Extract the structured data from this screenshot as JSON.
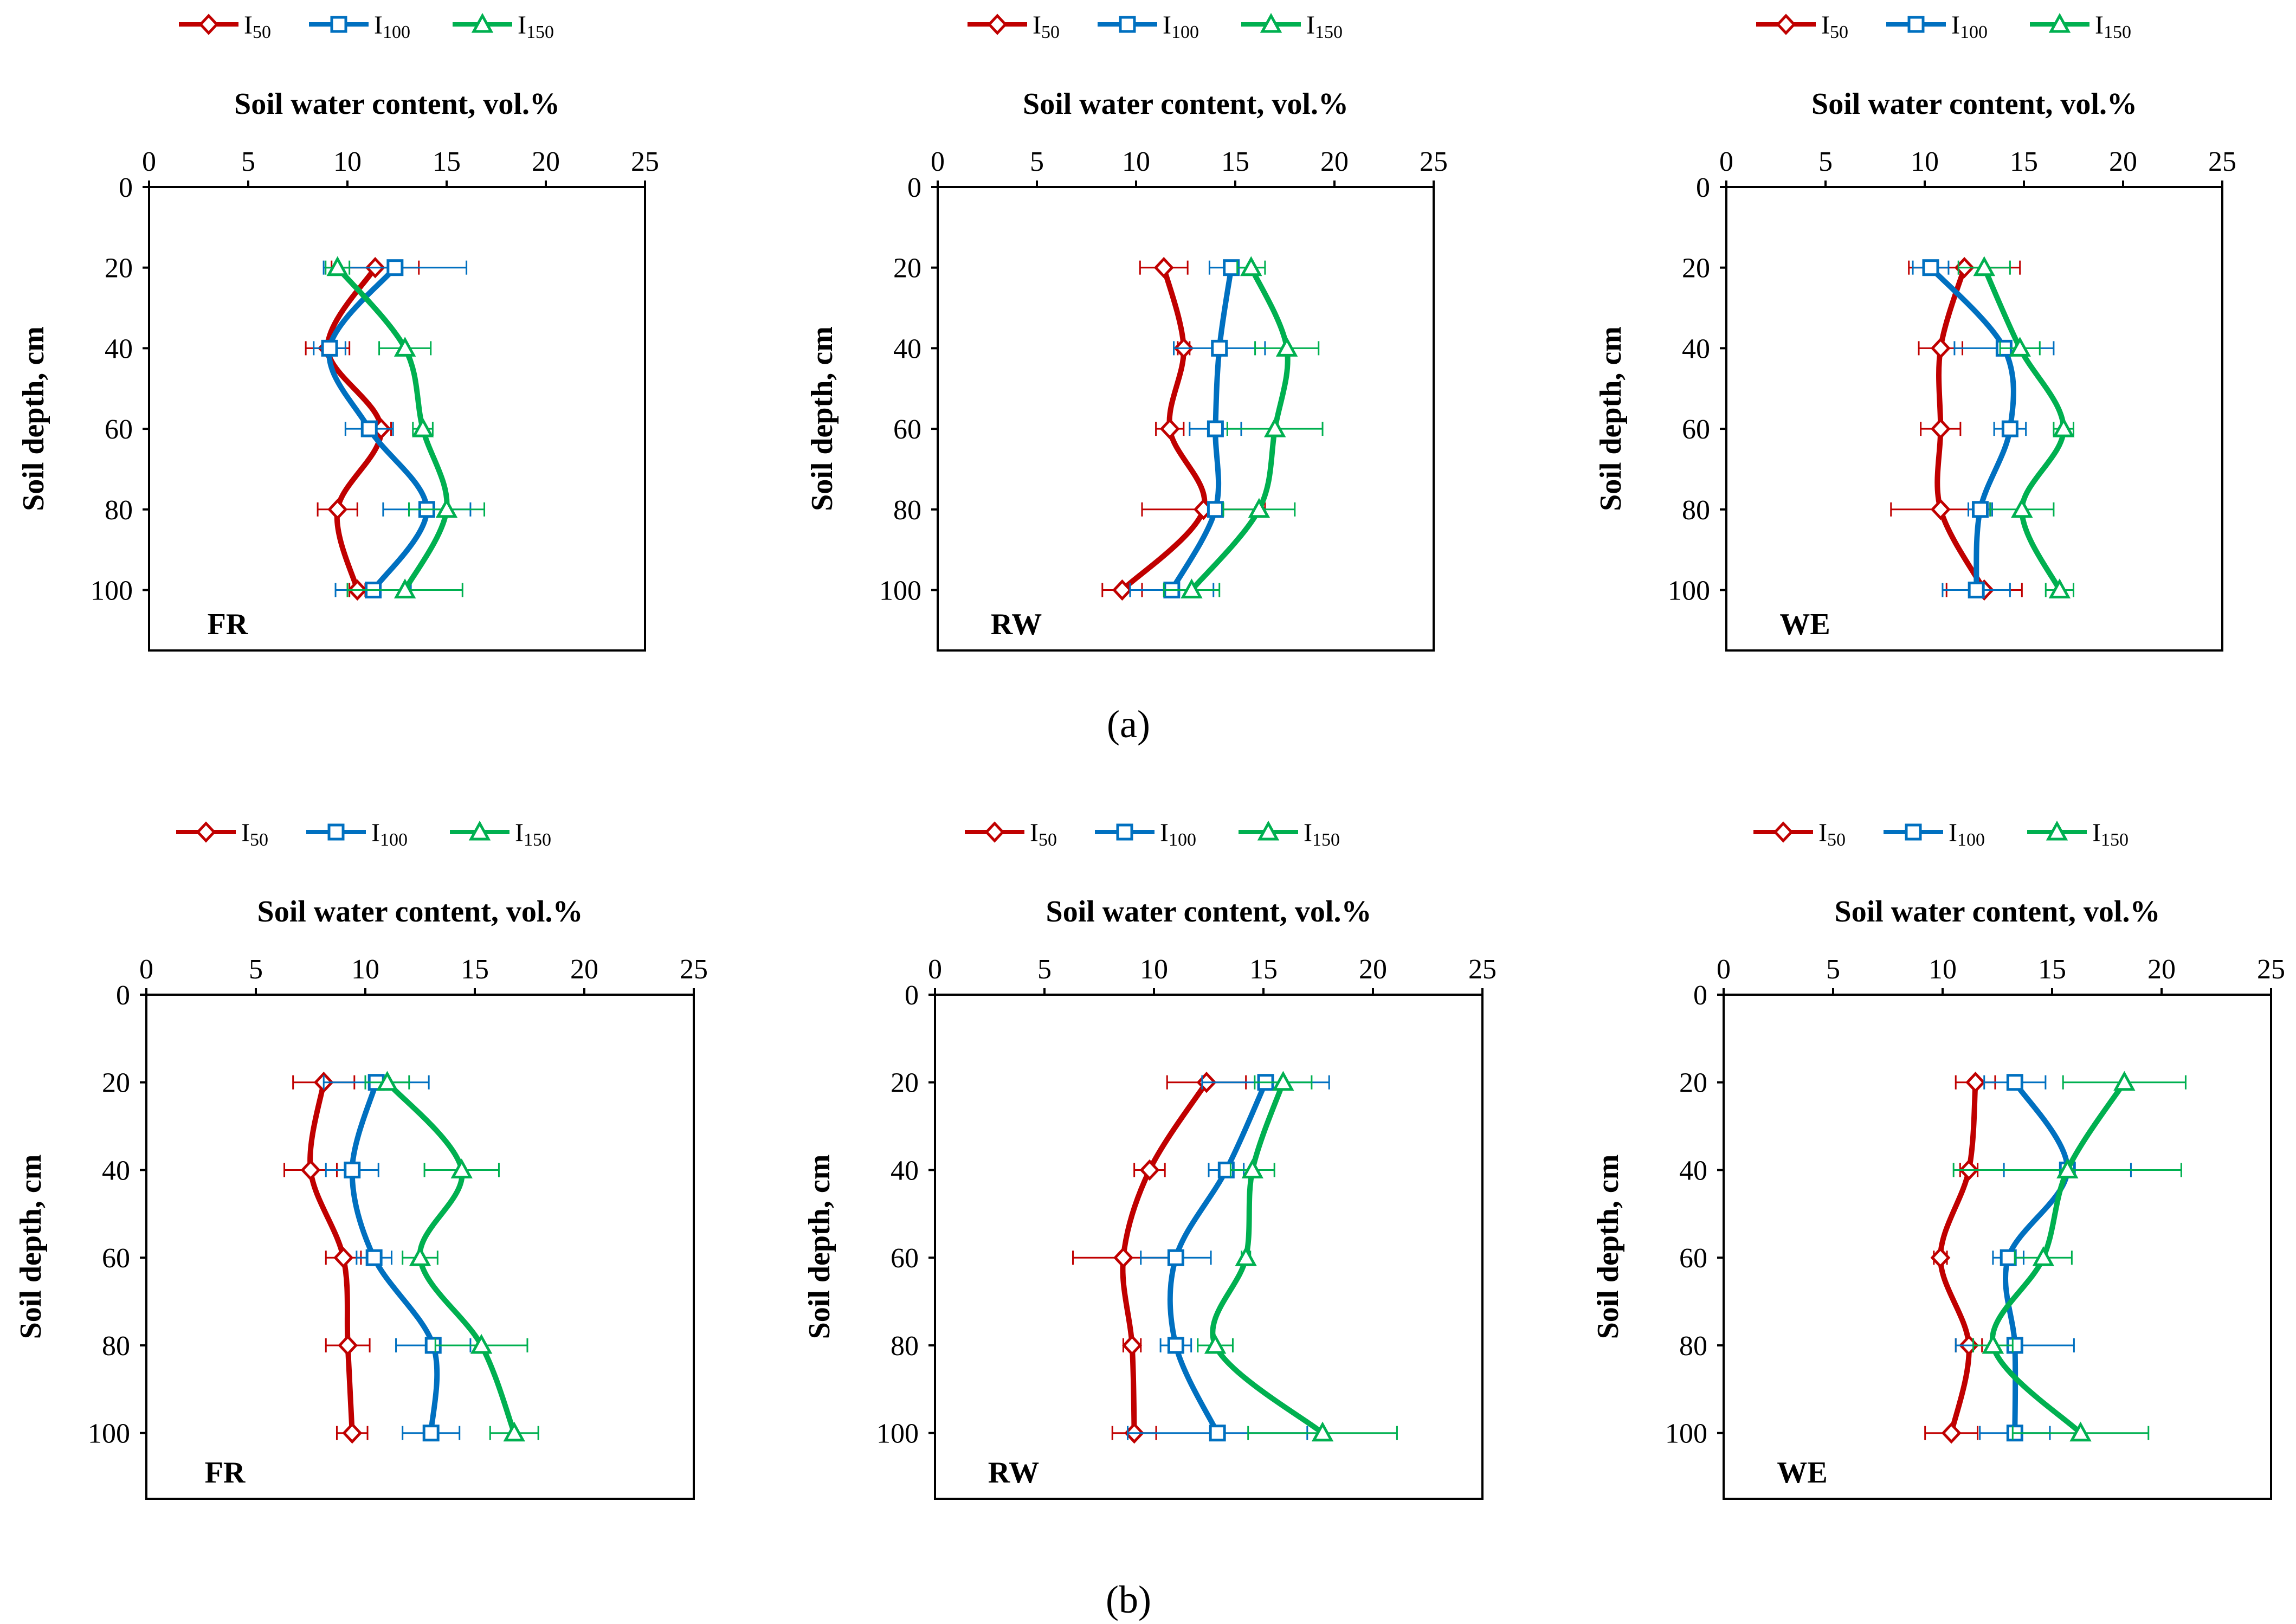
{
  "figure": {
    "group_labels": [
      "(a)",
      "(b)"
    ],
    "colors": {
      "I50": "#C00000",
      "I100": "#0070C0",
      "I150": "#00B050",
      "axis": "#000000"
    }
  },
  "chart_data": [
    {
      "type": "line",
      "panel": "FR",
      "group": "a",
      "xlabel": "Soil water content, vol.%",
      "ylabel": "Soil depth, cm",
      "xlim": [
        0,
        25
      ],
      "ylim": [
        0,
        115
      ],
      "xticks": [
        0,
        5,
        10,
        15,
        20,
        25
      ],
      "yticks": [
        0,
        20,
        40,
        60,
        80,
        100
      ],
      "depth": [
        20,
        40,
        60,
        80,
        100
      ],
      "series": [
        {
          "name": "I",
          "sub": "50",
          "key": "I50",
          "marker": "diamond",
          "values": [
            11.4,
            9.0,
            11.7,
            9.5,
            10.5
          ],
          "err": [
            2.2,
            1.1,
            0.5,
            1.0,
            0.4
          ]
        },
        {
          "name": "I",
          "sub": "100",
          "key": "I100",
          "marker": "square",
          "values": [
            12.4,
            9.1,
            11.1,
            14.0,
            11.3
          ],
          "err": [
            3.6,
            0.8,
            1.2,
            2.2,
            1.9
          ]
        },
        {
          "name": "I",
          "sub": "150",
          "key": "I150",
          "marker": "triangle",
          "values": [
            9.5,
            12.9,
            13.8,
            15.0,
            12.9
          ],
          "err": [
            0.6,
            1.3,
            0.5,
            1.9,
            2.9
          ]
        }
      ]
    },
    {
      "type": "line",
      "panel": "RW",
      "group": "a",
      "xlabel": "Soil water content, vol.%",
      "ylabel": "Soil depth, cm",
      "xlim": [
        0,
        25
      ],
      "ylim": [
        0,
        115
      ],
      "xticks": [
        0,
        5,
        10,
        15,
        20,
        25
      ],
      "yticks": [
        0,
        20,
        40,
        60,
        80,
        100
      ],
      "depth": [
        20,
        40,
        60,
        80,
        100
      ],
      "series": [
        {
          "name": "I",
          "sub": "50",
          "key": "I50",
          "marker": "diamond",
          "values": [
            11.4,
            12.4,
            11.7,
            13.4,
            9.3
          ],
          "err": [
            1.2,
            0.3,
            0.7,
            3.1,
            1.0
          ]
        },
        {
          "name": "I",
          "sub": "100",
          "key": "I100",
          "marker": "square",
          "values": [
            14.8,
            14.2,
            14.0,
            14.0,
            11.8
          ],
          "err": [
            1.1,
            2.3,
            1.3,
            0.3,
            2.1
          ]
        },
        {
          "name": "I",
          "sub": "150",
          "key": "I150",
          "marker": "triangle",
          "values": [
            15.8,
            17.6,
            17.0,
            16.2,
            12.8
          ],
          "err": [
            0.7,
            1.6,
            2.4,
            1.8,
            1.4
          ]
        }
      ]
    },
    {
      "type": "line",
      "panel": "WE",
      "group": "a",
      "xlabel": "Soil water content, vol.%",
      "ylabel": "Soil depth, cm",
      "xlim": [
        0,
        25
      ],
      "ylim": [
        0,
        115
      ],
      "xticks": [
        0,
        5,
        10,
        15,
        20,
        25
      ],
      "yticks": [
        0,
        20,
        40,
        60,
        80,
        100
      ],
      "depth": [
        20,
        40,
        60,
        80,
        100
      ],
      "series": [
        {
          "name": "I",
          "sub": "50",
          "key": "I50",
          "marker": "diamond",
          "values": [
            12.0,
            10.8,
            10.8,
            10.8,
            13.0
          ],
          "err": [
            2.8,
            1.1,
            1.0,
            2.5,
            1.9
          ]
        },
        {
          "name": "I",
          "sub": "100",
          "key": "I100",
          "marker": "square",
          "values": [
            10.3,
            14.0,
            14.3,
            12.8,
            12.6
          ],
          "err": [
            0.9,
            2.5,
            0.8,
            0.6,
            1.7
          ]
        },
        {
          "name": "I",
          "sub": "150",
          "key": "I150",
          "marker": "triangle",
          "values": [
            13.0,
            14.8,
            17.0,
            14.9,
            16.8
          ],
          "err": [
            1.3,
            1.0,
            0.5,
            1.6,
            0.7
          ]
        }
      ]
    },
    {
      "type": "line",
      "panel": "FR",
      "group": "b",
      "xlabel": "Soil water content, vol.%",
      "ylabel": "Soil depth, cm",
      "xlim": [
        0,
        25
      ],
      "ylim": [
        0,
        115
      ],
      "xticks": [
        0,
        5,
        10,
        15,
        20,
        25
      ],
      "yticks": [
        0,
        20,
        40,
        60,
        80,
        100
      ],
      "depth": [
        20,
        40,
        60,
        80,
        100
      ],
      "series": [
        {
          "name": "I",
          "sub": "50",
          "key": "I50",
          "marker": "diamond",
          "values": [
            8.1,
            7.5,
            9.0,
            9.2,
            9.4
          ],
          "err": [
            1.4,
            1.2,
            0.8,
            1.0,
            0.7
          ]
        },
        {
          "name": "I",
          "sub": "100",
          "key": "I100",
          "marker": "square",
          "values": [
            10.5,
            9.4,
            10.4,
            13.1,
            13.0
          ],
          "err": [
            2.4,
            1.2,
            0.8,
            1.7,
            1.3
          ]
        },
        {
          "name": "I",
          "sub": "150",
          "key": "I150",
          "marker": "triangle",
          "values": [
            11.0,
            14.4,
            12.5,
            15.3,
            16.8
          ],
          "err": [
            1.0,
            1.7,
            0.8,
            2.1,
            1.1
          ]
        }
      ]
    },
    {
      "type": "line",
      "panel": "RW",
      "group": "b",
      "xlabel": "Soil water content, vol.%",
      "ylabel": "Soil depth, cm",
      "xlim": [
        0,
        25
      ],
      "ylim": [
        0,
        115
      ],
      "xticks": [
        0,
        5,
        10,
        15,
        20,
        25
      ],
      "yticks": [
        0,
        20,
        40,
        60,
        80,
        100
      ],
      "depth": [
        20,
        40,
        60,
        80,
        100
      ],
      "series": [
        {
          "name": "I",
          "sub": "50",
          "key": "I50",
          "marker": "diamond",
          "values": [
            12.4,
            9.8,
            8.6,
            9.0,
            9.1
          ],
          "err": [
            1.8,
            0.7,
            2.3,
            0.4,
            1.0
          ]
        },
        {
          "name": "I",
          "sub": "100",
          "key": "I100",
          "marker": "square",
          "values": [
            15.1,
            13.3,
            11.0,
            11.0,
            12.9
          ],
          "err": [
            2.9,
            0.8,
            1.6,
            0.7,
            4.1
          ]
        },
        {
          "name": "I",
          "sub": "150",
          "key": "I150",
          "marker": "triangle",
          "values": [
            15.9,
            14.5,
            14.2,
            12.8,
            17.7
          ],
          "err": [
            1.3,
            1.0,
            0.2,
            0.8,
            3.4
          ]
        }
      ]
    },
    {
      "type": "line",
      "panel": "WE",
      "group": "b",
      "xlabel": "Soil water content, vol.%",
      "ylabel": "Soil depth, cm",
      "xlim": [
        0,
        25
      ],
      "ylim": [
        0,
        115
      ],
      "xticks": [
        0,
        5,
        10,
        15,
        20,
        25
      ],
      "yticks": [
        0,
        20,
        40,
        60,
        80,
        100
      ],
      "depth": [
        20,
        40,
        60,
        80,
        100
      ],
      "series": [
        {
          "name": "I",
          "sub": "50",
          "key": "I50",
          "marker": "diamond",
          "values": [
            11.5,
            11.2,
            9.9,
            11.2,
            10.4
          ],
          "err": [
            0.9,
            0.4,
            0.3,
            0.6,
            1.2
          ]
        },
        {
          "name": "I",
          "sub": "100",
          "key": "I100",
          "marker": "square",
          "values": [
            13.3,
            15.7,
            13.0,
            13.3,
            13.3
          ],
          "err": [
            1.4,
            2.9,
            0.7,
            2.7,
            1.6
          ]
        },
        {
          "name": "I",
          "sub": "150",
          "key": "I150",
          "marker": "triangle",
          "values": [
            18.3,
            15.7,
            14.6,
            12.3,
            16.3
          ],
          "err": [
            2.8,
            5.2,
            1.3,
            0.9,
            3.1
          ]
        }
      ]
    }
  ]
}
